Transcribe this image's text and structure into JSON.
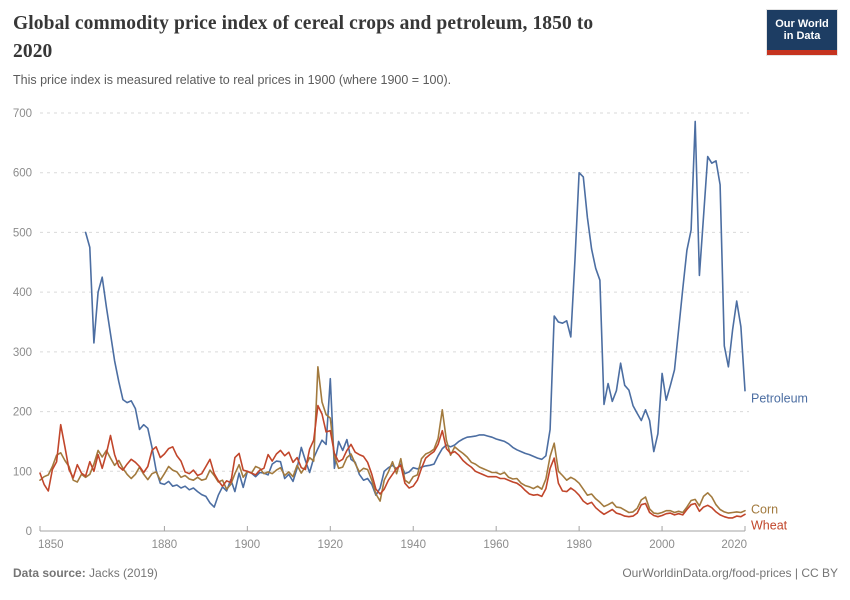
{
  "header": {
    "title_lines": [
      "Global commodity price index of cereal crops and petroleum, 1850 to",
      "2020"
    ],
    "subtitle": "This price index is measured relative to real prices in 1900 (where 1900 = 100).",
    "logo": {
      "line1": "Our World",
      "line2": "in Data",
      "bg_color": "#1d3d63",
      "bar_color": "#c5331f"
    }
  },
  "footer": {
    "source_label": "Data source:",
    "source_value": "Jacks (2019)",
    "right_text": "OurWorldinData.org/food-prices | CC BY"
  },
  "chart_data": {
    "type": "line",
    "title": "Global commodity price index of cereal crops and petroleum, 1850 to 2020",
    "subtitle": "This price index is measured relative to real prices in 1900 (where 1900 = 100).",
    "xlabel": "",
    "ylabel": "",
    "x_range": [
      1850,
      2020
    ],
    "y_range": [
      0,
      700
    ],
    "x_ticks": [
      1850,
      1880,
      1900,
      1920,
      1940,
      1960,
      1980,
      2000,
      2020
    ],
    "y_ticks": [
      0,
      100,
      200,
      300,
      400,
      500,
      600,
      700
    ],
    "grid": "horizontal-dashed",
    "legend_position": "line-end-labels",
    "series": [
      {
        "name": "Petroleum",
        "color": "#4C6EA2",
        "start_year": 1861,
        "values": [
          500,
          475,
          315,
          400,
          425,
          375,
          330,
          285,
          250,
          220,
          215,
          218,
          205,
          170,
          178,
          172,
          140,
          102,
          80,
          78,
          83,
          75,
          77,
          72,
          75,
          69,
          72,
          66,
          61,
          58,
          47,
          40,
          60,
          74,
          67,
          86,
          66,
          97,
          73,
          100,
          97,
          91,
          98,
          97,
          94,
          112,
          117,
          116,
          88,
          95,
          83,
          105,
          140,
          118,
          98,
          122,
          138,
          152,
          145,
          255,
          105,
          150,
          135,
          153,
          120,
          115,
          95,
          85,
          88,
          78,
          60,
          72,
          100,
          106,
          110,
          104,
          112,
          96,
          99,
          106,
          104,
          107,
          109,
          110,
          112,
          126,
          138,
          144,
          141,
          144,
          150,
          154,
          157,
          158,
          159,
          161,
          161,
          159,
          157,
          154,
          152,
          150,
          146,
          140,
          136,
          133,
          130,
          128,
          125,
          122,
          120,
          126,
          170,
          360,
          350,
          348,
          352,
          325,
          455,
          600,
          593,
          525,
          472,
          440,
          420,
          212,
          247,
          217,
          235,
          281,
          244,
          236,
          210,
          197,
          185,
          203,
          185,
          133,
          163,
          264,
          219,
          244,
          270,
          337,
          406,
          470,
          504,
          686,
          428,
          526,
          627,
          616,
          620,
          580,
          310,
          275,
          337,
          385,
          342,
          235
        ]
      },
      {
        "name": "Corn",
        "color": "#A27A3E",
        "start_year": 1850,
        "values": [
          85,
          91,
          94,
          108,
          127,
          131,
          118,
          108,
          85,
          82,
          95,
          90,
          95,
          112,
          135,
          124,
          135,
          122,
          110,
          118,
          105,
          95,
          88,
          95,
          107,
          95,
          86,
          96,
          99,
          85,
          96,
          108,
          102,
          99,
          90,
          93,
          87,
          85,
          90,
          85,
          87,
          102,
          93,
          82,
          85,
          70,
          78,
          96,
          111,
          90,
          100,
          97,
          108,
          105,
          96,
          99,
          96,
          102,
          106,
          93,
          99,
          91,
          110,
          97,
          108,
          123,
          117,
          275,
          216,
          195,
          189,
          125,
          105,
          107,
          123,
          129,
          113,
          99,
          105,
          103,
          85,
          62,
          50,
          85,
          99,
          116,
          96,
          121,
          85,
          80,
          91,
          94,
          121,
          129,
          132,
          137,
          155,
          203,
          152,
          127,
          141,
          135,
          130,
          124,
          115,
          112,
          107,
          104,
          101,
          98,
          98,
          95,
          98,
          90,
          87,
          88,
          80,
          76,
          74,
          71,
          75,
          70,
          87,
          125,
          147,
          100,
          93,
          85,
          90,
          86,
          80,
          70,
          60,
          62,
          54,
          48,
          41,
          44,
          48,
          40,
          39,
          35,
          31,
          32,
          38,
          52,
          57,
          37,
          30,
          29,
          31,
          34,
          34,
          31,
          33,
          31,
          40,
          51,
          53,
          42,
          58,
          64,
          57,
          44,
          36,
          32,
          30,
          31,
          32,
          31,
          34
        ]
      },
      {
        "name": "Wheat",
        "color": "#C1462B",
        "start_year": 1850,
        "values": [
          97,
          78,
          67,
          103,
          116,
          178,
          141,
          103,
          89,
          111,
          97,
          92,
          116,
          100,
          128,
          105,
          130,
          160,
          128,
          108,
          102,
          112,
          120,
          115,
          108,
          98,
          108,
          135,
          141,
          123,
          129,
          138,
          141,
          126,
          117,
          99,
          96,
          102,
          93,
          96,
          108,
          120,
          96,
          84,
          75,
          84,
          81,
          123,
          130,
          102,
          100,
          97,
          94,
          102,
          105,
          128,
          117,
          129,
          135,
          126,
          132,
          115,
          123,
          106,
          103,
          137,
          152,
          210,
          196,
          166,
          168,
          130,
          116,
          120,
          135,
          145,
          132,
          128,
          125,
          115,
          95,
          70,
          62,
          70,
          85,
          95,
          105,
          110,
          80,
          72,
          75,
          85,
          105,
          122,
          128,
          133,
          145,
          168,
          138,
          130,
          133,
          127,
          118,
          112,
          107,
          100,
          97,
          94,
          91,
          91,
          91,
          88,
          88,
          85,
          82,
          80,
          75,
          68,
          62,
          60,
          61,
          58,
          71,
          105,
          122,
          80,
          67,
          66,
          72,
          67,
          60,
          50,
          45,
          48,
          39,
          33,
          28,
          32,
          36,
          30,
          28,
          25,
          24,
          25,
          30,
          44,
          46,
          31,
          26,
          24,
          26,
          29,
          30,
          27,
          29,
          27,
          36,
          44,
          46,
          33,
          40,
          43,
          39,
          32,
          27,
          24,
          22,
          22,
          25,
          24,
          28
        ]
      }
    ]
  },
  "colors": {
    "title_text": "#373737",
    "subtitle_text": "#5b5b5b",
    "axis_labels": "#8c8c8c",
    "gridlines": "#dadada",
    "axis_line": "#a3a3a3"
  }
}
